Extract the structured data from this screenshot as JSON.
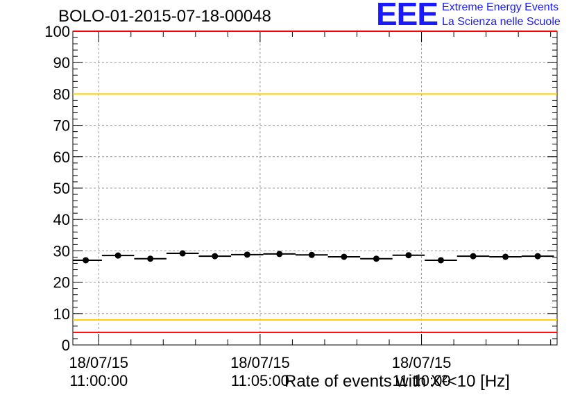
{
  "header": {
    "run_title": "BOLO-01-2015-07-18-00048"
  },
  "logo": {
    "mark": "EEE",
    "line1": "Extreme Energy Events",
    "line2": "La Scienza nelle Scuole",
    "color": "#1a1aff"
  },
  "chart_data": {
    "type": "scatter",
    "title": "BOLO-01-2015-07-18-00048",
    "xlabel": "Rate of events with X²<10 [Hz]",
    "ylabel": "",
    "ylim": [
      0,
      100
    ],
    "yticks": [
      0,
      10,
      20,
      30,
      40,
      50,
      60,
      70,
      80,
      90,
      100
    ],
    "xlim_minutes": [
      -0.8,
      14.2
    ],
    "xticks": [
      {
        "minute": 0,
        "date": "18/07/15",
        "time": "11:00:00"
      },
      {
        "minute": 5,
        "date": "18/07/15",
        "time": "11:05:00"
      },
      {
        "minute": 10,
        "date": "18/07/15",
        "time": "11:10:00"
      }
    ],
    "grid": true,
    "reference_lines": [
      {
        "value": 100,
        "color": "#ff0000"
      },
      {
        "value": 80,
        "color": "#ffcc00"
      },
      {
        "value": 8,
        "color": "#ffcc00"
      },
      {
        "value": 4,
        "color": "#ff0000"
      }
    ],
    "bin_width_minutes": 1,
    "points": [
      {
        "minute": -0.4,
        "value": 27.0
      },
      {
        "minute": 0.6,
        "value": 28.5
      },
      {
        "minute": 1.6,
        "value": 27.5
      },
      {
        "minute": 2.6,
        "value": 29.2
      },
      {
        "minute": 3.6,
        "value": 28.3
      },
      {
        "minute": 4.6,
        "value": 28.8
      },
      {
        "minute": 5.6,
        "value": 29.0
      },
      {
        "minute": 6.6,
        "value": 28.7
      },
      {
        "minute": 7.6,
        "value": 28.1
      },
      {
        "minute": 8.6,
        "value": 27.5
      },
      {
        "minute": 9.6,
        "value": 28.6
      },
      {
        "minute": 10.6,
        "value": 27.0
      },
      {
        "minute": 11.6,
        "value": 28.3
      },
      {
        "minute": 12.6,
        "value": 28.1
      },
      {
        "minute": 13.6,
        "value": 28.3
      }
    ]
  }
}
